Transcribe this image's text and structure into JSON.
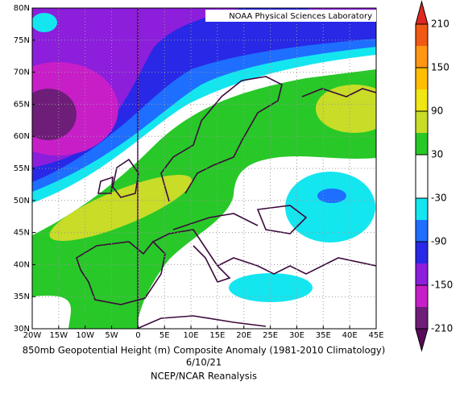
{
  "map": {
    "xlim": [
      -20,
      45
    ],
    "ylim": [
      30,
      80
    ],
    "xticks": [
      {
        "value": -20,
        "label": "20W"
      },
      {
        "value": -15,
        "label": "15W"
      },
      {
        "value": -10,
        "label": "10W"
      },
      {
        "value": -5,
        "label": "5W"
      },
      0,
      {
        "value": 5,
        "label": "5E"
      },
      {
        "value": 10,
        "label": "10E"
      },
      {
        "value": 15,
        "label": "15E"
      },
      {
        "value": 20,
        "label": "20E"
      },
      {
        "value": 25,
        "label": "25E"
      },
      {
        "value": 30,
        "label": "30E"
      },
      {
        "value": 35,
        "label": "35E"
      },
      {
        "value": 40,
        "label": "40E"
      },
      {
        "value": 45,
        "label": "45E"
      }
    ],
    "yticks": [
      {
        "value": 30,
        "label": "30N"
      },
      {
        "value": 35,
        "label": "35N"
      },
      {
        "value": 40,
        "label": "40N"
      },
      {
        "value": 45,
        "label": "45N"
      },
      {
        "value": 50,
        "label": "50N"
      },
      {
        "value": 55,
        "label": "55N"
      },
      {
        "value": 60,
        "label": "60N"
      },
      {
        "value": 65,
        "label": "65N"
      },
      {
        "value": 70,
        "label": "70N"
      },
      {
        "value": 75,
        "label": "75N"
      },
      {
        "value": 80,
        "label": "80N"
      }
    ],
    "grid": true
  },
  "colorbar": {
    "levels": [
      210,
      150,
      90,
      30,
      -30,
      -90,
      -150,
      -210
    ],
    "colors": [
      "#e0281e",
      "#f05a14",
      "#ff9614",
      "#ffbe00",
      "#f0e614",
      "#c8dc28",
      "#28c828",
      "#ffffff",
      "#ffffff",
      "#14e6f0",
      "#1e6eff",
      "#2828e6",
      "#8c1edc",
      "#c81ec8",
      "#6e1e78",
      "#5a0a5a"
    ]
  },
  "lab": "NOAA Physical Sciences Laboratory",
  "title": "850mb Geopotential Height (m) Composite Anomaly (1981-2010 Climatology)",
  "date": "6/10/21",
  "source": "NCEP/NCAR Reanalysis"
}
